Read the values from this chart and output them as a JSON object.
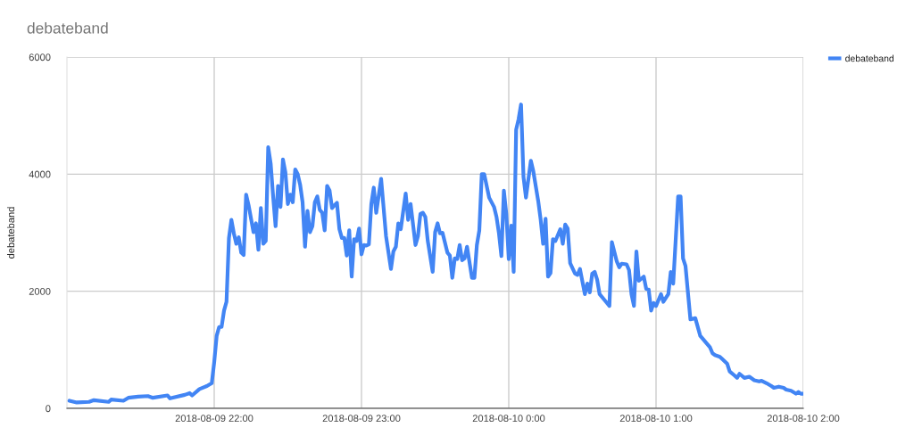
{
  "chart_data": {
    "type": "line",
    "title": "debateband",
    "ylabel": "debateband",
    "x": [
      "2018-08-09T21:01",
      "2018-08-09T21:04",
      "2018-08-09T21:09",
      "2018-08-09T21:11",
      "2018-08-09T21:17",
      "2018-08-09T21:18",
      "2018-08-09T21:23",
      "2018-08-09T21:25",
      "2018-08-09T21:29",
      "2018-08-09T21:33",
      "2018-08-09T21:35",
      "2018-08-09T21:41",
      "2018-08-09T21:42",
      "2018-08-09T21:48",
      "2018-08-09T21:50",
      "2018-08-09T21:51",
      "2018-08-09T21:54",
      "2018-08-09T21:57",
      "2018-08-09T21:59",
      "2018-08-09T22:00",
      "2018-08-09T22:01",
      "2018-08-09T22:02",
      "2018-08-09T22:03",
      "2018-08-09T22:04",
      "2018-08-09T22:05",
      "2018-08-09T22:06",
      "2018-08-09T22:07",
      "2018-08-09T22:08",
      "2018-08-09T22:09",
      "2018-08-09T22:10",
      "2018-08-09T22:11",
      "2018-08-09T22:12",
      "2018-08-09T22:13",
      "2018-08-09T22:14",
      "2018-08-09T22:16",
      "2018-08-09T22:17",
      "2018-08-09T22:18",
      "2018-08-09T22:19",
      "2018-08-09T22:20",
      "2018-08-09T22:21",
      "2018-08-09T22:22",
      "2018-08-09T22:23",
      "2018-08-09T22:24",
      "2018-08-09T22:25",
      "2018-08-09T22:26",
      "2018-08-09T22:27",
      "2018-08-09T22:28",
      "2018-08-09T22:29",
      "2018-08-09T22:30",
      "2018-08-09T22:31",
      "2018-08-09T22:32",
      "2018-08-09T22:33",
      "2018-08-09T22:34",
      "2018-08-09T22:35",
      "2018-08-09T22:36",
      "2018-08-09T22:37",
      "2018-08-09T22:38",
      "2018-08-09T22:39",
      "2018-08-09T22:40",
      "2018-08-09T22:41",
      "2018-08-09T22:42",
      "2018-08-09T22:43",
      "2018-08-09T22:44",
      "2018-08-09T22:45",
      "2018-08-09T22:46",
      "2018-08-09T22:47",
      "2018-08-09T22:48",
      "2018-08-09T22:49",
      "2018-08-09T22:50",
      "2018-08-09T22:51",
      "2018-08-09T22:52",
      "2018-08-09T22:53",
      "2018-08-09T22:54",
      "2018-08-09T22:55",
      "2018-08-09T22:56",
      "2018-08-09T22:57",
      "2018-08-09T22:58",
      "2018-08-09T22:59",
      "2018-08-09T23:00",
      "2018-08-09T23:01",
      "2018-08-09T23:02",
      "2018-08-09T23:03",
      "2018-08-09T23:04",
      "2018-08-09T23:05",
      "2018-08-09T23:06",
      "2018-08-09T23:08",
      "2018-08-09T23:10",
      "2018-08-09T23:12",
      "2018-08-09T23:13",
      "2018-08-09T23:14",
      "2018-08-09T23:15",
      "2018-08-09T23:16",
      "2018-08-09T23:18",
      "2018-08-09T23:19",
      "2018-08-09T23:20",
      "2018-08-09T23:22",
      "2018-08-09T23:23",
      "2018-08-09T23:24",
      "2018-08-09T23:25",
      "2018-08-09T23:26",
      "2018-08-09T23:27",
      "2018-08-09T23:29",
      "2018-08-09T23:30",
      "2018-08-09T23:31",
      "2018-08-09T23:32",
      "2018-08-09T23:33",
      "2018-08-09T23:35",
      "2018-08-09T23:36",
      "2018-08-09T23:37",
      "2018-08-09T23:38",
      "2018-08-09T23:39",
      "2018-08-09T23:40",
      "2018-08-09T23:41",
      "2018-08-09T23:42",
      "2018-08-09T23:43",
      "2018-08-09T23:45",
      "2018-08-09T23:46",
      "2018-08-09T23:47",
      "2018-08-09T23:48",
      "2018-08-09T23:49",
      "2018-08-09T23:50",
      "2018-08-09T23:52",
      "2018-08-09T23:54",
      "2018-08-09T23:55",
      "2018-08-09T23:56",
      "2018-08-09T23:57",
      "2018-08-09T23:58",
      "2018-08-09T23:59",
      "2018-08-10T00:00",
      "2018-08-10T00:01",
      "2018-08-10T00:02",
      "2018-08-10T00:03",
      "2018-08-10T00:04",
      "2018-08-10T00:05",
      "2018-08-10T00:06",
      "2018-08-10T00:07",
      "2018-08-10T00:09",
      "2018-08-10T00:10",
      "2018-08-10T00:12",
      "2018-08-10T00:13",
      "2018-08-10T00:14",
      "2018-08-10T00:15",
      "2018-08-10T00:16",
      "2018-08-10T00:17",
      "2018-08-10T00:18",
      "2018-08-10T00:19",
      "2018-08-10T00:21",
      "2018-08-10T00:22",
      "2018-08-10T00:23",
      "2018-08-10T00:24",
      "2018-08-10T00:25",
      "2018-08-10T00:27",
      "2018-08-10T00:28",
      "2018-08-10T00:29",
      "2018-08-10T00:31",
      "2018-08-10T00:32",
      "2018-08-10T00:33",
      "2018-08-10T00:34",
      "2018-08-10T00:35",
      "2018-08-10T00:36",
      "2018-08-10T00:37",
      "2018-08-10T00:39",
      "2018-08-10T00:41",
      "2018-08-10T00:42",
      "2018-08-10T00:44",
      "2018-08-10T00:45",
      "2018-08-10T00:46",
      "2018-08-10T00:48",
      "2018-08-10T00:49",
      "2018-08-10T00:50",
      "2018-08-10T00:51",
      "2018-08-10T00:52",
      "2018-08-10T00:53",
      "2018-08-10T00:55",
      "2018-08-10T00:56",
      "2018-08-10T00:57",
      "2018-08-10T00:58",
      "2018-08-10T00:59",
      "2018-08-10T01:00",
      "2018-08-10T01:02",
      "2018-08-10T01:03",
      "2018-08-10T01:05",
      "2018-08-10T01:06",
      "2018-08-10T01:07",
      "2018-08-10T01:09",
      "2018-08-10T01:10",
      "2018-08-10T01:11",
      "2018-08-10T01:12",
      "2018-08-10T01:14",
      "2018-08-10T01:16",
      "2018-08-10T01:18",
      "2018-08-10T01:20",
      "2018-08-10T01:22",
      "2018-08-10T01:23",
      "2018-08-10T01:24",
      "2018-08-10T01:26",
      "2018-08-10T01:27",
      "2018-08-10T01:29",
      "2018-08-10T01:30",
      "2018-08-10T01:32",
      "2018-08-10T01:33",
      "2018-08-10T01:34",
      "2018-08-10T01:36",
      "2018-08-10T01:38",
      "2018-08-10T01:40",
      "2018-08-10T01:42",
      "2018-08-10T01:43",
      "2018-08-10T01:45",
      "2018-08-10T01:47",
      "2018-08-10T01:48",
      "2018-08-10T01:50",
      "2018-08-10T01:52",
      "2018-08-10T01:53",
      "2018-08-10T01:55",
      "2018-08-10T01:57",
      "2018-08-10T01:58",
      "2018-08-10T01:59",
      "2018-08-10T02:00"
    ],
    "series": [
      {
        "name": "debateband",
        "color": "#4285f4",
        "values": [
          130,
          100,
          110,
          140,
          110,
          150,
          130,
          180,
          200,
          210,
          180,
          220,
          170,
          230,
          260,
          220,
          330,
          380,
          430,
          790,
          1240,
          1390,
          1390,
          1670,
          1820,
          2910,
          3220,
          2990,
          2810,
          2920,
          2660,
          2620,
          3650,
          3470,
          3010,
          3160,
          2710,
          3420,
          2810,
          2860,
          4460,
          4180,
          3620,
          3110,
          3800,
          3440,
          4250,
          4030,
          3490,
          3650,
          3520,
          4080,
          4000,
          3820,
          3520,
          2760,
          3370,
          3010,
          3110,
          3520,
          3620,
          3390,
          3340,
          3040,
          3800,
          3720,
          3420,
          3470,
          3510,
          3060,
          2910,
          2910,
          2610,
          3040,
          2250,
          2890,
          2860,
          3070,
          2630,
          2790,
          2780,
          2800,
          3490,
          3770,
          3340,
          3920,
          2940,
          2380,
          2680,
          2760,
          3160,
          3060,
          3670,
          3220,
          3490,
          2790,
          2940,
          3320,
          3340,
          3270,
          2860,
          2330,
          3010,
          3160,
          2990,
          3000,
          2660,
          2610,
          2230,
          2560,
          2550,
          2790,
          2530,
          2560,
          2760,
          2230,
          2230,
          2790,
          3040,
          4000,
          4000,
          3600,
          3440,
          3270,
          2990,
          2600,
          3720,
          3320,
          2550,
          3120,
          2330,
          4760,
          4940,
          5190,
          3950,
          3600,
          4230,
          4050,
          3540,
          3220,
          2810,
          3240,
          2250,
          2310,
          2890,
          2860,
          3060,
          2810,
          3140,
          3070,
          2480,
          2300,
          2280,
          2380,
          1950,
          2130,
          1980,
          2300,
          2330,
          2200,
          1950,
          1850,
          1750,
          2840,
          2510,
          2410,
          2470,
          2460,
          2360,
          1950,
          1750,
          2680,
          2180,
          2250,
          2040,
          2030,
          1670,
          1800,
          1750,
          1950,
          1820,
          1950,
          2330,
          2130,
          3620,
          3620,
          2560,
          2430,
          1520,
          1540,
          1240,
          1140,
          1040,
          940,
          910,
          880,
          840,
          760,
          630,
          560,
          520,
          590,
          520,
          540,
          480,
          460,
          470,
          430,
          380,
          350,
          370,
          350,
          320,
          300,
          250,
          280,
          250,
          250
        ]
      }
    ],
    "xlim": [
      "2018-08-09T21:00",
      "2018-08-10T02:00"
    ],
    "xticks": [
      {
        "value": "2018-08-09T22:00",
        "label": "2018-08-09 22:00"
      },
      {
        "value": "2018-08-09T23:00",
        "label": "2018-08-09 23:00"
      },
      {
        "value": "2018-08-10T00:00",
        "label": "2018-08-10 0:00"
      },
      {
        "value": "2018-08-10T01:00",
        "label": "2018-08-10 1:00"
      },
      {
        "value": "2018-08-10T02:00",
        "label": "2018-08-10 2:00"
      }
    ],
    "ylim": [
      0,
      6000
    ],
    "yticks": [
      0,
      2000,
      4000,
      6000
    ],
    "grid": true,
    "legend": "top right"
  }
}
